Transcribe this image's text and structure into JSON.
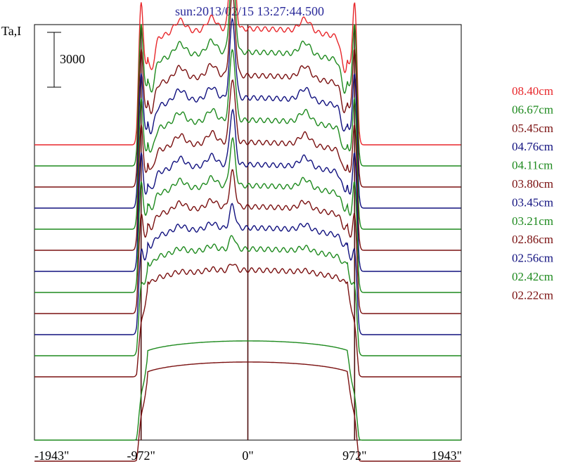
{
  "chart_data": {
    "type": "line",
    "title": "sun:2013/02/15 13:27:44.500",
    "title_color": "#2a2a9a",
    "ylabel": "Ta,I",
    "xlabel": "",
    "xlim": [
      -1943,
      1943
    ],
    "x_ticks": [
      {
        "value": -1943,
        "label": "-1943\""
      },
      {
        "value": -972,
        "label": "-972\""
      },
      {
        "value": 0,
        "label": "0\""
      },
      {
        "value": 972,
        "label": "972\""
      },
      {
        "value": 1943,
        "label": "1943\""
      }
    ],
    "vertical_lines": [
      -972,
      0,
      972
    ],
    "vertical_line_color": "#4d0f0f",
    "scale_bar": {
      "label": "3000",
      "value": 3000
    },
    "grid": false,
    "legend_placement": "right",
    "series": [
      {
        "name": "08.40cm",
        "color": "#e8272b",
        "offset": 11,
        "limb_peak": 0.9,
        "limb_dip": 0.55,
        "center_peak": 1.0,
        "disk_level": 1.0
      },
      {
        "name": "06.67cm",
        "color": "#1e8a1e",
        "offset": 10,
        "limb_peak": 0.9,
        "limb_dip": 0.5,
        "center_peak": 0.95,
        "disk_level": 0.98
      },
      {
        "name": "05.45cm",
        "color": "#7a1010",
        "offset": 9,
        "limb_peak": 0.88,
        "limb_dip": 0.45,
        "center_peak": 0.9,
        "disk_level": 0.96
      },
      {
        "name": "04.76cm",
        "color": "#11117f",
        "offset": 8,
        "limb_peak": 0.85,
        "limb_dip": 0.42,
        "center_peak": 0.85,
        "disk_level": 0.95
      },
      {
        "name": "04.11cm",
        "color": "#1e8a1e",
        "offset": 7,
        "limb_peak": 0.82,
        "limb_dip": 0.38,
        "center_peak": 0.78,
        "disk_level": 0.94
      },
      {
        "name": "03.80cm",
        "color": "#7a1010",
        "offset": 6,
        "limb_peak": 0.78,
        "limb_dip": 0.33,
        "center_peak": 0.7,
        "disk_level": 0.93
      },
      {
        "name": "03.45cm",
        "color": "#11117f",
        "offset": 5,
        "limb_peak": 0.72,
        "limb_dip": 0.28,
        "center_peak": 0.6,
        "disk_level": 0.92
      },
      {
        "name": "03.21cm",
        "color": "#1e8a1e",
        "offset": 4,
        "limb_peak": 0.65,
        "limb_dip": 0.24,
        "center_peak": 0.5,
        "disk_level": 0.92
      },
      {
        "name": "02.86cm",
        "color": "#7a1010",
        "offset": 3,
        "limb_peak": 0.55,
        "limb_dip": 0.2,
        "center_peak": 0.38,
        "disk_level": 0.92
      },
      {
        "name": "02.56cm",
        "color": "#11117f",
        "offset": 2,
        "limb_peak": 0.42,
        "limb_dip": 0.15,
        "center_peak": 0.25,
        "disk_level": 0.92
      },
      {
        "name": "02.42cm",
        "color": "#1e8a1e",
        "offset": 1,
        "limb_peak": 0.3,
        "limb_dip": 0.1,
        "center_peak": 0.15,
        "disk_level": 0.92
      },
      {
        "name": "02.22cm",
        "color": "#7a1010",
        "offset": 0,
        "limb_peak": 0.15,
        "limb_dip": 0.05,
        "center_peak": 0.08,
        "disk_level": 0.92
      }
    ],
    "extra_baselines": [
      {
        "color": "#1e8a1e",
        "offset": -1
      },
      {
        "color": "#7a1010",
        "offset": -2
      }
    ]
  }
}
